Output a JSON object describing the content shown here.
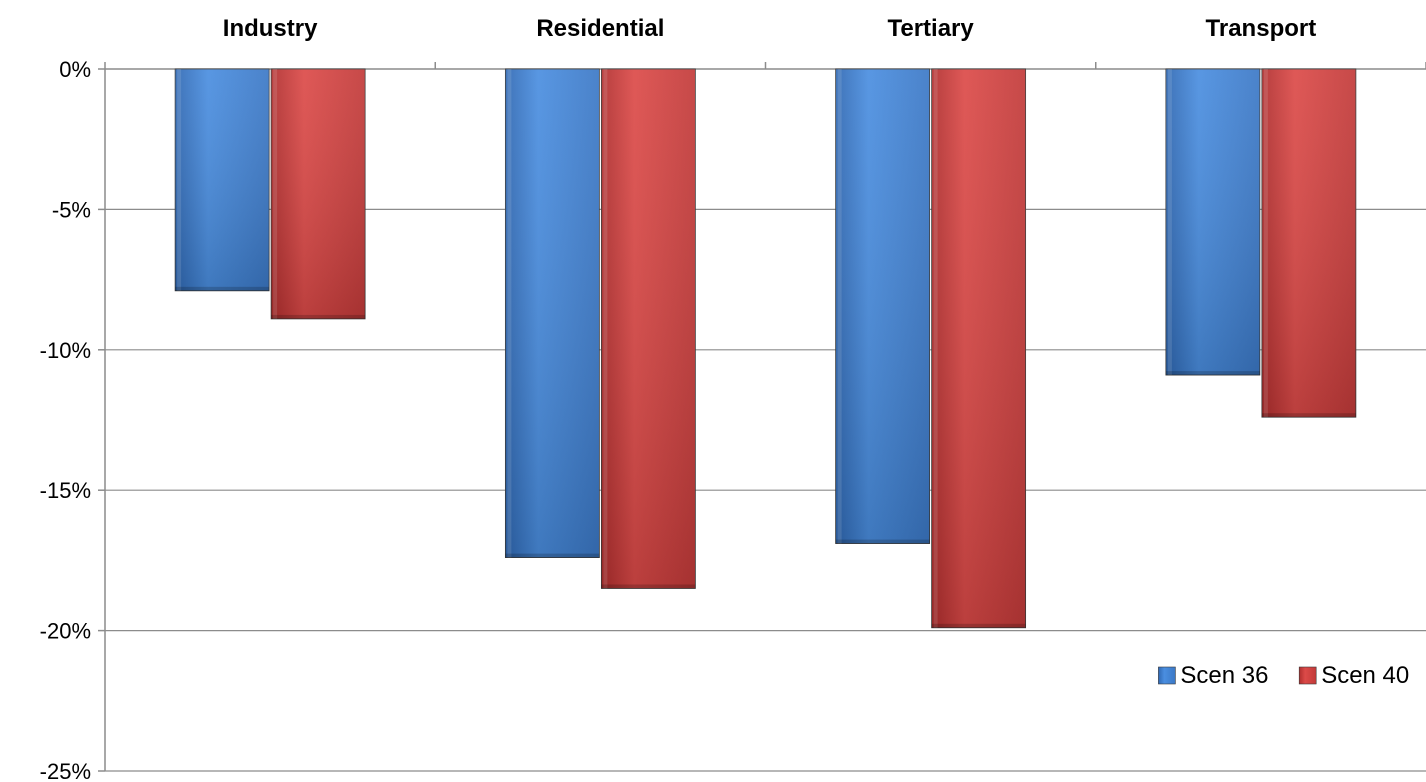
{
  "chart_data": {
    "type": "bar",
    "categories": [
      "Industry",
      "Residential",
      "Tertiary",
      "Transport"
    ],
    "series": [
      {
        "name": "Scen 36",
        "values": [
          -7.9,
          -17.4,
          -16.9,
          -10.9
        ],
        "color": "#3e7fd0"
      },
      {
        "name": "Scen 40",
        "values": [
          -8.9,
          -18.5,
          -19.9,
          -12.4
        ],
        "color": "#c93b3a"
      }
    ],
    "ylim": [
      -25,
      0
    ],
    "yticks": [
      0,
      -5,
      -10,
      -15,
      -20,
      -25
    ],
    "ytick_labels": [
      "0%",
      "-5%",
      "-10%",
      "-15%",
      "-20%",
      "-25%"
    ],
    "category_axis_position": "top",
    "grid": true,
    "legend_position": "bottom-right"
  }
}
